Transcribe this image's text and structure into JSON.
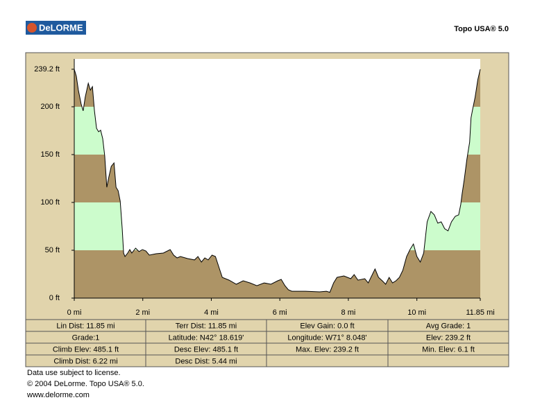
{
  "header": {
    "logo": "DeLORME",
    "product": "Topo USA® 5.0"
  },
  "chart_data": {
    "type": "area",
    "x": [
      0,
      0.06,
      0.12,
      0.2,
      0.26,
      0.32,
      0.41,
      0.47,
      0.53,
      0.59,
      0.65,
      0.71,
      0.77,
      0.83,
      0.89,
      0.95,
      1.01,
      1.08,
      1.16,
      1.22,
      1.28,
      1.34,
      1.4,
      1.44,
      1.48,
      1.56,
      1.62,
      1.68,
      1.79,
      1.89,
      1.99,
      2.09,
      2.19,
      2.39,
      2.6,
      2.8,
      2.9,
      3.0,
      3.1,
      3.31,
      3.51,
      3.61,
      3.71,
      3.81,
      3.91,
      4.02,
      4.12,
      4.22,
      4.32,
      4.52,
      4.73,
      4.93,
      5.13,
      5.33,
      5.54,
      5.74,
      5.94,
      6.04,
      6.15,
      6.25,
      6.35,
      6.75,
      7.16,
      7.36,
      7.46,
      7.57,
      7.67,
      7.87,
      8.07,
      8.17,
      8.28,
      8.48,
      8.58,
      8.78,
      8.88,
      8.99,
      9.09,
      9.19,
      9.29,
      9.39,
      9.49,
      9.59,
      9.7,
      9.8,
      9.9,
      10.0,
      10.1,
      10.2,
      10.3,
      10.41,
      10.51,
      10.61,
      10.71,
      10.81,
      10.91,
      11.01,
      11.12,
      11.22,
      11.28,
      11.32,
      11.38,
      11.46,
      11.54,
      11.58,
      11.62,
      11.7,
      11.78,
      11.85
    ],
    "values": [
      239.2,
      231.9,
      217.4,
      202.9,
      195.7,
      210.1,
      224.6,
      217.4,
      221.0,
      195.7,
      177.5,
      173.9,
      175.4,
      166.7,
      148.6,
      115.9,
      126.8,
      137.7,
      141.3,
      115.9,
      112.3,
      101.4,
      72.5,
      47.1,
      43.5,
      47.1,
      50.7,
      47.1,
      52.2,
      48.6,
      50.7,
      49.3,
      44.9,
      46.4,
      47.1,
      50.7,
      44.9,
      42.0,
      43.5,
      41.3,
      39.9,
      43.5,
      37.7,
      42.0,
      39.9,
      44.9,
      43.5,
      32.6,
      21.7,
      18.8,
      14.5,
      18.1,
      15.9,
      13.0,
      15.9,
      14.5,
      18.1,
      19.6,
      13.0,
      8.7,
      7.2,
      7.2,
      6.5,
      7.2,
      6.1,
      15.9,
      21.7,
      23.2,
      20.3,
      24.6,
      18.8,
      20.3,
      15.9,
      30.4,
      21.7,
      18.1,
      14.5,
      21.7,
      15.9,
      18.1,
      21.7,
      29.0,
      43.5,
      50.7,
      56.5,
      43.5,
      37.7,
      47.1,
      79.7,
      90.6,
      87.0,
      78.3,
      79.7,
      72.5,
      70.3,
      79.7,
      85.5,
      87.0,
      97.8,
      108.7,
      123.2,
      144.9,
      163.0,
      188.4,
      195.7,
      210.1,
      228.3,
      239.2
    ],
    "xlim": [
      0,
      11.85
    ],
    "xticks": [
      {
        "value": 0,
        "label": "0 mi"
      },
      {
        "value": 2,
        "label": "2 mi"
      },
      {
        "value": 4,
        "label": "4 mi"
      },
      {
        "value": 6,
        "label": "6 mi"
      },
      {
        "value": 8,
        "label": "8 mi"
      },
      {
        "value": 10,
        "label": "10 mi"
      },
      {
        "value": 11.85,
        "label": "11.85 mi"
      }
    ],
    "ylim": [
      0,
      250
    ],
    "yticks": [
      {
        "value": 0,
        "label": "0 ft"
      },
      {
        "value": 50,
        "label": "50 ft"
      },
      {
        "value": 100,
        "label": "100 ft"
      },
      {
        "value": 150,
        "label": "150 ft"
      },
      {
        "value": 200,
        "label": "200 ft"
      },
      {
        "value": 239.2,
        "label": "239.2 ft"
      }
    ],
    "band_colors": [
      "#ad9466",
      "#ccfccc"
    ],
    "line_color": "#000000"
  },
  "table": {
    "rows": [
      [
        "Lin Dist: 11.85 mi",
        "Terr Dist: 11.85 mi",
        "Elev Gain: 0.0 ft",
        "Avg Grade: 1"
      ],
      [
        "Grade:1",
        "Latitude: N42° 18.619'",
        "Longitude: W71° 8.048'",
        "Elev: 239.2 ft"
      ],
      [
        "Climb Elev: 485.1 ft",
        "Desc Elev: 485.1 ft",
        "Max. Elev: 239.2 ft",
        "Min. Elev: 6.1 ft"
      ],
      [
        "Climb Dist: 6.22 mi",
        "Desc Dist: 5.44 mi"
      ]
    ]
  },
  "footer": [
    "Data use subject to license.",
    "© 2004 DeLorme. Topo USA® 5.0.",
    "www.delorme.com"
  ]
}
